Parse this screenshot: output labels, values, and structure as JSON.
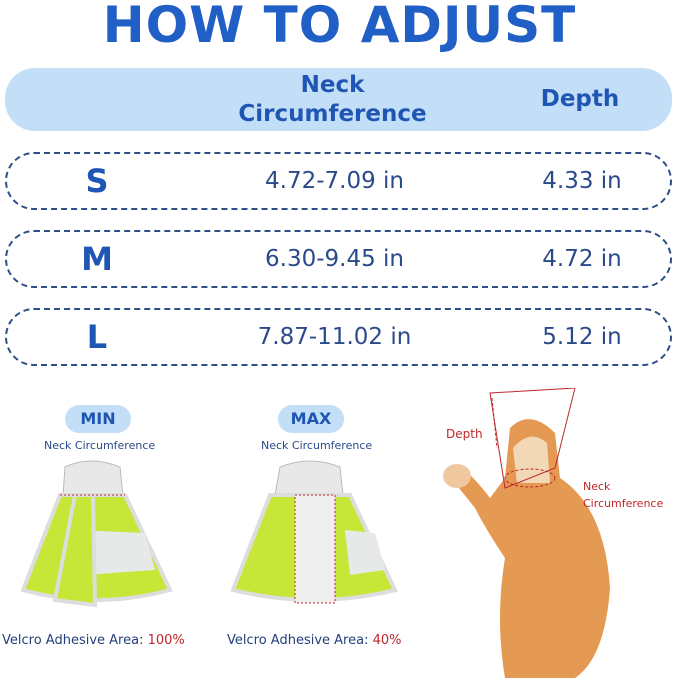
{
  "title": "HOW TO ADJUST",
  "header": {
    "neck_line1": "Neck",
    "neck_line2": "Circumference",
    "depth": "Depth"
  },
  "rows": [
    {
      "size": "S",
      "neck": "4.72-7.09 in",
      "depth": "4.33 in"
    },
    {
      "size": "M",
      "neck": "6.30-9.45 in",
      "depth": "4.72 in"
    },
    {
      "size": "L",
      "neck": "7.87-11.02 in",
      "depth": "5.12 in"
    }
  ],
  "min": {
    "label": "MIN",
    "caption": "Neck Circumference",
    "velcro_label": "Velcro Adhesive Area:",
    "velcro_value": "100%"
  },
  "max": {
    "label": "MAX",
    "caption": "Neck Circumference",
    "velcro_label": "Velcro Adhesive Area:",
    "velcro_value": "40%"
  },
  "cat": {
    "depth_label": "Depth",
    "neck_line1": "Neck",
    "neck_line2": "Circumference"
  },
  "colors": {
    "title": "#1f5fc6",
    "header_bg": "#c3def7",
    "cone": "#c6e638",
    "annotation": "#c0262b"
  }
}
